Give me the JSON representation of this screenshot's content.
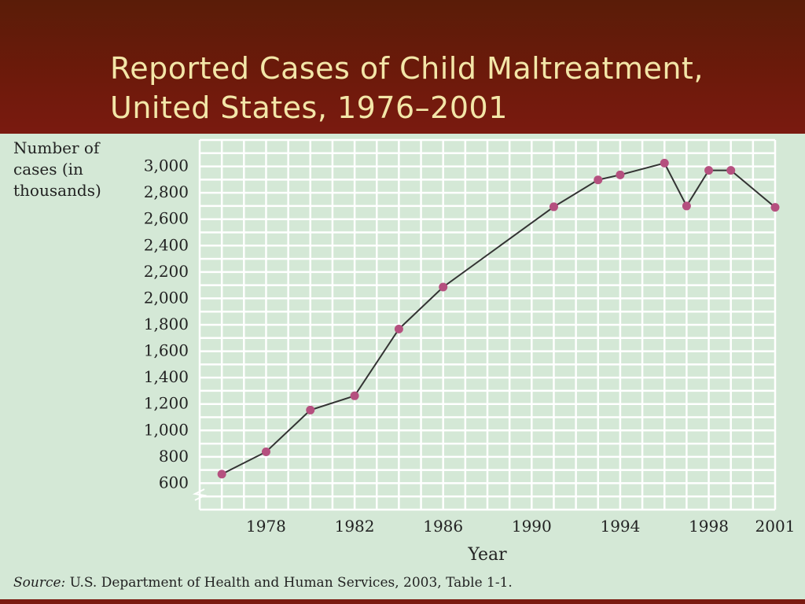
{
  "slide": {
    "title_line1": "Reported Cases of Child Maltreatment,",
    "title_line2": "United States, 1976–2001",
    "source_label": "Source:",
    "source_text": "U.S. Department of Health and Human Services, 2003, Table 1-1.",
    "colors": {
      "title_band": "#6e1a0b",
      "title_text": "#f3e6a8",
      "background": "#d4e8d6",
      "line": "#333333",
      "marker": "#b5507f"
    }
  },
  "chart_data": {
    "type": "line",
    "ylabel": "Number of cases (in thousands)",
    "xlabel": "Year",
    "x_ticks": [
      "1978",
      "1982",
      "1986",
      "1990",
      "1994",
      "1998",
      "2001"
    ],
    "y_ticks": [
      "600",
      "800",
      "1,000",
      "1,200",
      "1,400",
      "1,600",
      "1,800",
      "2,000",
      "2,200",
      "2,400",
      "2,600",
      "2,800",
      "3,000"
    ],
    "xlim": [
      1975,
      2001
    ],
    "ylim": [
      400,
      3200
    ],
    "grid": true,
    "axis_break": true,
    "series": [
      {
        "x": [
          1976,
          1978,
          1980,
          1982,
          1984,
          1986,
          1991,
          1993,
          1994,
          1996,
          1997,
          1998,
          1999,
          2001
        ],
        "y": [
          669,
          838,
          1154,
          1262,
          1768,
          2086,
          2694,
          2898,
          2936,
          3025,
          2700,
          2970,
          2970,
          2690
        ]
      }
    ]
  }
}
